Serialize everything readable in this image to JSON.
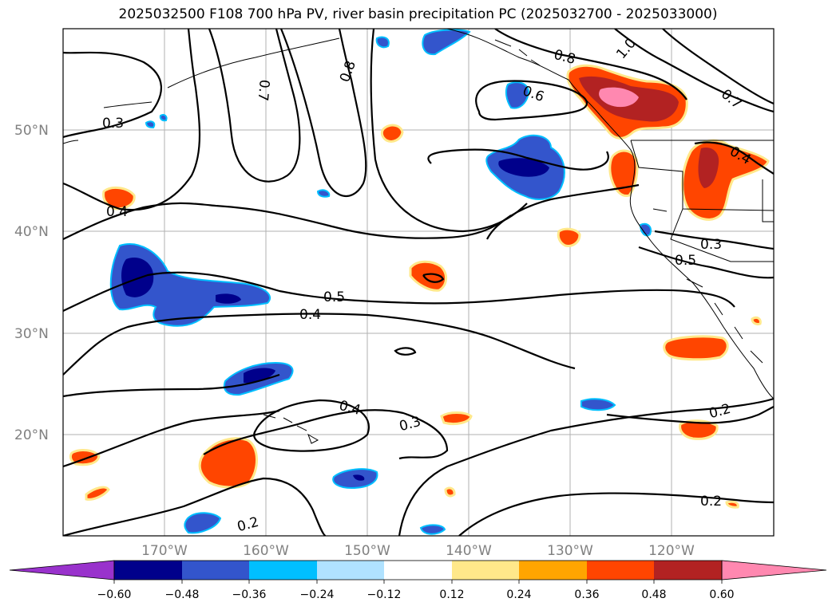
{
  "title": "2025032500 F108 700 hPa PV, river basin precipitation PC (2025032700 - 2025033000)",
  "latitude_labels": [
    "50°N",
    "40°N",
    "30°N",
    "20°N"
  ],
  "longitude_labels": [
    "170°W",
    "160°W",
    "150°W",
    "140°W",
    "130°W",
    "120°W"
  ],
  "contour_labels": [
    "0.3",
    "0.4",
    "0.7",
    "0.8",
    "0.6",
    "0.8",
    "1.0",
    "0.7",
    "0.4",
    "0.3",
    "0.5",
    "0.5",
    "0.4",
    "0.4",
    "0.3",
    "0.2",
    "0.2",
    "0.2"
  ],
  "colorbar": {
    "ticks": [
      "−0.60",
      "−0.48",
      "−0.36",
      "−0.24",
      "−0.12",
      "0.12",
      "0.24",
      "0.36",
      "0.48",
      "0.60"
    ],
    "colors": [
      "#9932cc",
      "#00008b",
      "#3355cc",
      "#00bfff",
      "#b0e2ff",
      "#ffffff",
      "#ffe88a",
      "#ffa500",
      "#ff4500",
      "#b22222",
      "#ff88b0"
    ]
  }
}
